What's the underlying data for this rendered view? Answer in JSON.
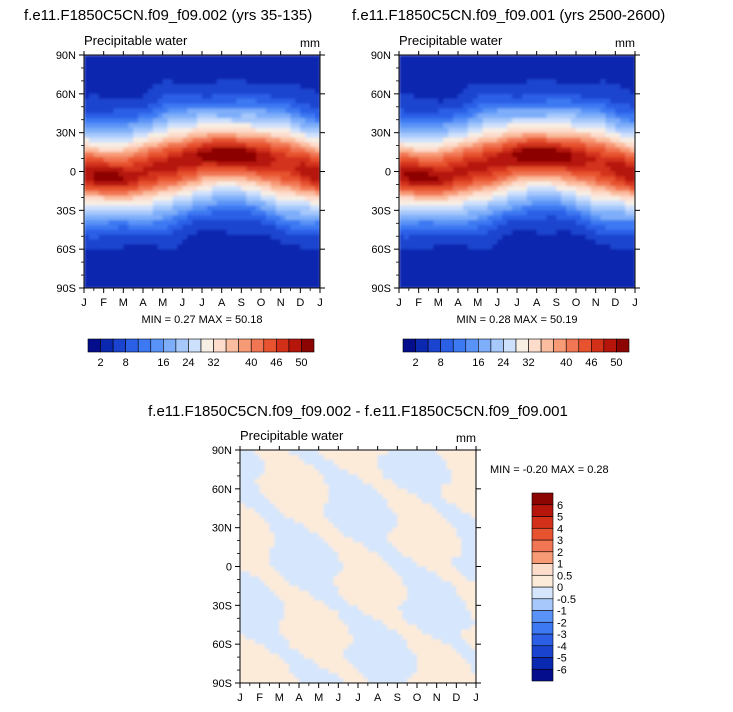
{
  "chart_data": [
    {
      "type": "heatmap",
      "title": "f.e11.F1850C5CN.f09_f09.002 (yrs 35-135)",
      "subtitle": "Precipitable water",
      "units": "mm",
      "stats": "MIN =  0.27 MAX =  50.18",
      "x_tick_labels": [
        "J",
        "F",
        "M",
        "A",
        "M",
        "J",
        "J",
        "A",
        "S",
        "O",
        "N",
        "D",
        "J"
      ],
      "y_tick_labels": [
        "90N",
        "60N",
        "30N",
        "0",
        "30S",
        "60S",
        "90S"
      ],
      "ylim": [
        -90,
        90
      ],
      "colorbar": {
        "orientation": "horizontal",
        "levels": [
          2,
          5,
          8,
          11,
          14,
          16,
          20,
          24,
          28,
          32,
          35,
          38,
          40,
          43,
          46,
          48,
          50
        ],
        "tick_labels": [
          "2",
          "8",
          "16",
          "24",
          "32",
          "40",
          "46",
          "50"
        ],
        "colors": [
          "#040e8c",
          "#0b28b0",
          "#1a44cf",
          "#2a5fe6",
          "#3c79f2",
          "#5a93f7",
          "#7eaef9",
          "#a6c8fb",
          "#cde0fc",
          "#f7eee4",
          "#fddccc",
          "#fbbd9f",
          "#f79a76",
          "#f17653",
          "#e7522f",
          "#d3301a",
          "#b5150b",
          "#8c0503"
        ]
      },
      "series": [
        {
          "month_lat_grid_summary": "ITCZ maximum ~50 mm near 0-15N, peaking Jul-Sep; values decrease toward the poles (~1-5 mm)"
        }
      ]
    },
    {
      "type": "heatmap",
      "title": "f.e11.F1850C5CN.f09_f09.001 (yrs 2500-2600)",
      "subtitle": "Precipitable water",
      "units": "mm",
      "stats": "MIN =  0.28 MAX =  50.19",
      "x_tick_labels": [
        "J",
        "F",
        "M",
        "A",
        "M",
        "J",
        "J",
        "A",
        "S",
        "O",
        "N",
        "D",
        "J"
      ],
      "y_tick_labels": [
        "90N",
        "60N",
        "30N",
        "0",
        "30S",
        "60S",
        "90S"
      ],
      "ylim": [
        -90,
        90
      ],
      "colorbar": {
        "orientation": "horizontal",
        "levels": [
          2,
          5,
          8,
          11,
          14,
          16,
          20,
          24,
          28,
          32,
          35,
          38,
          40,
          43,
          46,
          48,
          50
        ],
        "tick_labels": [
          "2",
          "8",
          "16",
          "24",
          "32",
          "40",
          "46",
          "50"
        ],
        "colors": [
          "#040e8c",
          "#0b28b0",
          "#1a44cf",
          "#2a5fe6",
          "#3c79f2",
          "#5a93f7",
          "#7eaef9",
          "#a6c8fb",
          "#cde0fc",
          "#f7eee4",
          "#fddccc",
          "#fbbd9f",
          "#f79a76",
          "#f17653",
          "#e7522f",
          "#d3301a",
          "#b5150b",
          "#8c0503"
        ]
      }
    },
    {
      "type": "heatmap",
      "title": "f.e11.F1850C5CN.f09_f09.002 - f.e11.F1850C5CN.f09_f09.001",
      "subtitle": "Precipitable water",
      "units": "mm",
      "stats": "MIN = -0.20 MAX =  0.28",
      "x_tick_labels": [
        "J",
        "F",
        "M",
        "A",
        "M",
        "J",
        "J",
        "A",
        "S",
        "O",
        "N",
        "D",
        "J"
      ],
      "y_tick_labels": [
        "90N",
        "60N",
        "30N",
        "0",
        "30S",
        "60S",
        "90S"
      ],
      "ylim": [
        -90,
        90
      ],
      "colorbar": {
        "orientation": "vertical",
        "levels": [
          -6,
          -5,
          -4,
          -3,
          -2,
          -1,
          -0.5,
          0,
          0.5,
          1,
          2,
          3,
          4,
          5,
          6
        ],
        "tick_labels": [
          "-6",
          "-5",
          "-4",
          "-3",
          "-2",
          "-1",
          "-0.5",
          "0",
          "0.5",
          "1",
          "2",
          "3",
          "4",
          "5",
          "6"
        ],
        "colors": [
          "#040e8c",
          "#0b28b0",
          "#1a44cf",
          "#2a5fe6",
          "#3c79f2",
          "#5a93f7",
          "#a6c8fb",
          "#d6e6fc",
          "#fdebd9",
          "#fddccc",
          "#f79a76",
          "#f17653",
          "#e7522f",
          "#d3301a",
          "#b5150b",
          "#8c0503"
        ]
      }
    }
  ]
}
